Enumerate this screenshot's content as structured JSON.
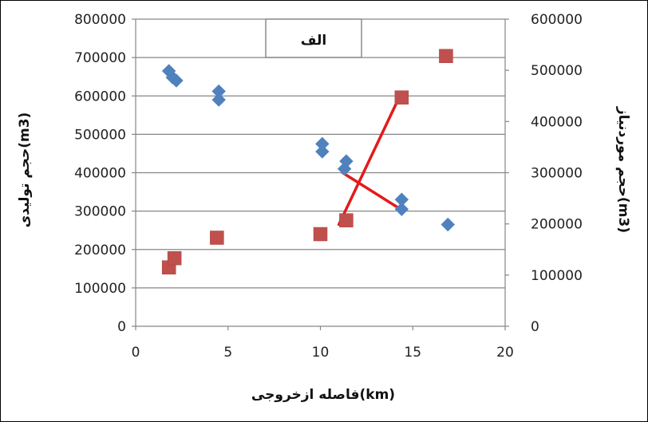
{
  "chart_data": {
    "type": "scatter",
    "title": "الف",
    "xlabel": "فاصله ازخروجی(km)",
    "ylabel_left": "حجم تولیدی(m3)",
    "ylabel_right": "حجم موردنیاز(m3)",
    "xlim": [
      0,
      20
    ],
    "ylim_left": [
      0,
      800000
    ],
    "ylim_right": [
      0,
      600000
    ],
    "x_ticks": [
      "0",
      "5",
      "10",
      "15",
      "20"
    ],
    "y_left_ticks": [
      "0",
      "100000",
      "200000",
      "300000",
      "400000",
      "500000",
      "600000",
      "700000",
      "800000"
    ],
    "y_right_ticks": [
      "0",
      "100000",
      "200000",
      "300000",
      "400000",
      "500000",
      "600000"
    ],
    "grid": true,
    "series": [
      {
        "axis": "left",
        "marker": "diamond",
        "color": "#4F81BD",
        "points": [
          {
            "x": 1.8,
            "y": 665000
          },
          {
            "x": 2.0,
            "y": 648000
          },
          {
            "x": 2.2,
            "y": 640000
          },
          {
            "x": 4.5,
            "y": 612000
          },
          {
            "x": 4.5,
            "y": 590000
          },
          {
            "x": 10.1,
            "y": 475000
          },
          {
            "x": 10.1,
            "y": 455000
          },
          {
            "x": 11.4,
            "y": 430000
          },
          {
            "x": 11.3,
            "y": 410000
          },
          {
            "x": 14.4,
            "y": 330000
          },
          {
            "x": 14.4,
            "y": 305000
          },
          {
            "x": 16.9,
            "y": 265000
          }
        ]
      },
      {
        "axis": "right",
        "marker": "square",
        "color": "#C0504D",
        "points": [
          {
            "x": 1.8,
            "y": 115000
          },
          {
            "x": 2.1,
            "y": 133000
          },
          {
            "x": 4.4,
            "y": 173000
          },
          {
            "x": 10.0,
            "y": 180000
          },
          {
            "x": 11.4,
            "y": 207000
          },
          {
            "x": 14.4,
            "y": 447000
          },
          {
            "x": 16.8,
            "y": 528000
          }
        ]
      }
    ],
    "trend_lines": [
      {
        "axis": "left",
        "color": "#E31A1C",
        "from": {
          "x": 11.2,
          "y": 400000
        },
        "to": {
          "x": 14.5,
          "y": 300000
        }
      },
      {
        "axis": "left",
        "color": "#E31A1C",
        "from": {
          "x": 11.0,
          "y": 265000
        },
        "to": {
          "x": 14.3,
          "y": 600000
        }
      }
    ]
  }
}
